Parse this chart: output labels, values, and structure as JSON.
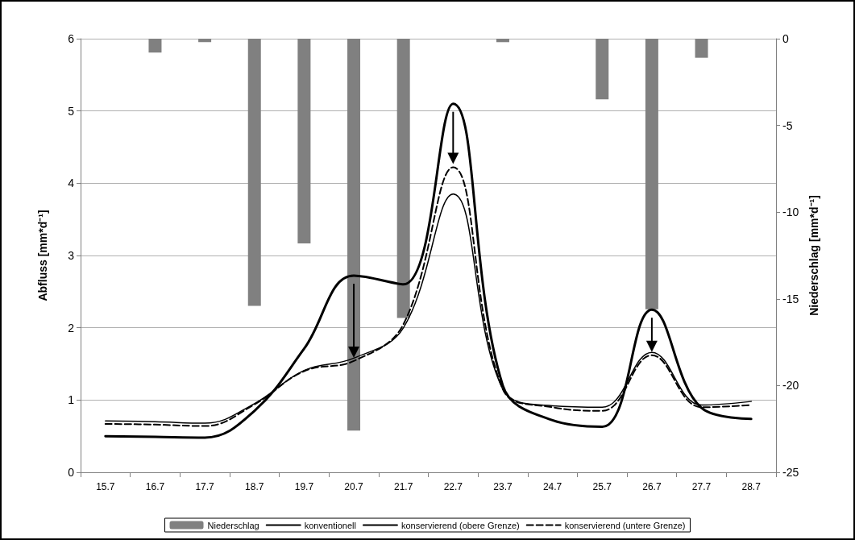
{
  "chart_data": {
    "type": "line",
    "xlabel": null,
    "ylabel": "Abfluss [mm*d⁻¹]",
    "y2label": "Niederschlag [mm*d⁻¹]",
    "categories": [
      "15.7",
      "16.7",
      "17.7",
      "18.7",
      "19.7",
      "20.7",
      "21.7",
      "22.7",
      "23.7",
      "24.7",
      "25.7",
      "26.7",
      "27.7",
      "28.7"
    ],
    "series": [
      {
        "name": "Niederschlag",
        "type": "bar",
        "axis": "y2",
        "color": "#808080",
        "values": [
          null,
          -0.8,
          -0.2,
          -15.4,
          -11.8,
          -22.6,
          -16.1,
          null,
          -0.2,
          null,
          -3.5,
          -15.6,
          -1.1,
          null
        ]
      },
      {
        "name": "konventionell",
        "color": "#000000",
        "line_style": "solid",
        "values": [
          0.5,
          0.49,
          0.48,
          0.85,
          1.71,
          2.72,
          2.6,
          5.1,
          1.2,
          0.72,
          0.63,
          2.25,
          0.89,
          0.74
        ]
      },
      {
        "name": "konservierend (obere Grenze)",
        "color": "#000000",
        "line_style": "solid",
        "values": [
          0.71,
          0.7,
          0.68,
          0.95,
          1.41,
          1.58,
          2.0,
          3.85,
          1.15,
          0.92,
          0.9,
          1.66,
          0.93,
          0.98
        ]
      },
      {
        "name": "konservierend (untere Grenze)",
        "color": "#000000",
        "line_style": "dashed",
        "values": [
          0.67,
          0.66,
          0.64,
          0.94,
          1.4,
          1.54,
          2.05,
          4.22,
          1.15,
          0.9,
          0.85,
          1.62,
          0.9,
          0.93
        ]
      }
    ],
    "ylim": [
      0,
      6
    ],
    "yticks": [
      0,
      1,
      2,
      3,
      4,
      5,
      6
    ],
    "y2lim": [
      -25,
      0
    ],
    "y2ticks": [
      -25,
      -20,
      -15,
      -10,
      -5,
      0
    ],
    "grid": "y",
    "legend": "bottom",
    "marker": "none"
  }
}
